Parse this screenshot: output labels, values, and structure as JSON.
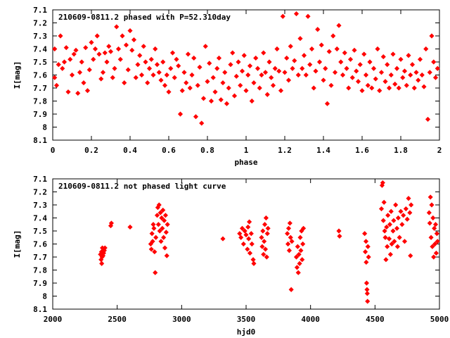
{
  "chart_data": [
    {
      "type": "scatter",
      "title": "210609-0811.2 phased with P=52.310day",
      "xlabel": "phase",
      "ylabel": "I[mag]",
      "xlim": [
        0,
        2
      ],
      "ylim": [
        8.1,
        7.1
      ],
      "y_inverted": true,
      "grid": false,
      "color": "#ff0000",
      "xticks": [
        "0",
        "0.2",
        "0.4",
        "0.6",
        "0.8",
        "1",
        "1.2",
        "1.4",
        "1.6",
        "1.8",
        "2"
      ],
      "yticks": [
        "7.1",
        "7.2",
        "7.3",
        "7.4",
        "7.5",
        "7.6",
        "7.7",
        "7.8",
        "7.9",
        "8",
        "8.1"
      ],
      "points": [
        [
          0.01,
          7.4
        ],
        [
          0.01,
          7.62
        ],
        [
          0.02,
          7.68
        ],
        [
          0.03,
          7.52
        ],
        [
          0.04,
          7.3
        ],
        [
          0.05,
          7.55
        ],
        [
          0.06,
          7.5
        ],
        [
          0.07,
          7.39
        ],
        [
          0.08,
          7.73
        ],
        [
          0.09,
          7.48
        ],
        [
          0.1,
          7.6
        ],
        [
          0.11,
          7.44
        ],
        [
          0.12,
          7.41
        ],
        [
          0.13,
          7.74
        ],
        [
          0.14,
          7.58
        ],
        [
          0.15,
          7.5
        ],
        [
          0.16,
          7.66
        ],
        [
          0.17,
          7.39
        ],
        [
          0.18,
          7.72
        ],
        [
          0.19,
          7.56
        ],
        [
          0.2,
          7.35
        ],
        [
          0.21,
          7.48
        ],
        [
          0.22,
          7.4
        ],
        [
          0.23,
          7.3
        ],
        [
          0.24,
          7.44
        ],
        [
          0.25,
          7.63
        ],
        [
          0.26,
          7.58
        ],
        [
          0.27,
          7.43
        ],
        [
          0.28,
          7.5
        ],
        [
          0.29,
          7.38
        ],
        [
          0.3,
          7.42
        ],
        [
          0.31,
          7.62
        ],
        [
          0.32,
          7.55
        ],
        [
          0.33,
          7.23
        ],
        [
          0.34,
          7.4
        ],
        [
          0.35,
          7.48
        ],
        [
          0.36,
          7.3
        ],
        [
          0.37,
          7.66
        ],
        [
          0.38,
          7.37
        ],
        [
          0.39,
          7.56
        ],
        [
          0.4,
          7.26
        ],
        [
          0.41,
          7.41
        ],
        [
          0.42,
          7.33
        ],
        [
          0.43,
          7.62
        ],
        [
          0.44,
          7.52
        ],
        [
          0.45,
          7.45
        ],
        [
          0.46,
          7.6
        ],
        [
          0.47,
          7.38
        ],
        [
          0.48,
          7.5
        ],
        [
          0.49,
          7.66
        ],
        [
          0.5,
          7.55
        ],
        [
          0.51,
          7.48
        ],
        [
          0.52,
          7.6
        ],
        [
          0.53,
          7.4
        ],
        [
          0.54,
          7.52
        ],
        [
          0.55,
          7.58
        ],
        [
          0.56,
          7.64
        ],
        [
          0.57,
          7.5
        ],
        [
          0.58,
          7.68
        ],
        [
          0.59,
          7.6
        ],
        [
          0.6,
          7.73
        ],
        [
          0.61,
          7.55
        ],
        [
          0.62,
          7.43
        ],
        [
          0.63,
          7.62
        ],
        [
          0.64,
          7.48
        ],
        [
          0.65,
          7.53
        ],
        [
          0.66,
          7.9
        ],
        [
          0.67,
          7.72
        ],
        [
          0.68,
          7.58
        ],
        [
          0.69,
          7.66
        ],
        [
          0.7,
          7.44
        ],
        [
          0.71,
          7.7
        ],
        [
          0.72,
          7.6
        ],
        [
          0.73,
          7.47
        ],
        [
          0.74,
          7.92
        ],
        [
          0.75,
          7.68
        ],
        [
          0.76,
          7.54
        ],
        [
          0.77,
          7.97
        ],
        [
          0.78,
          7.78
        ],
        [
          0.79,
          7.38
        ],
        [
          0.8,
          7.65
        ],
        [
          0.81,
          7.51
        ],
        [
          0.82,
          7.8
        ],
        [
          0.83,
          7.62
        ],
        [
          0.84,
          7.73
        ],
        [
          0.85,
          7.55
        ],
        [
          0.86,
          7.47
        ],
        [
          0.87,
          7.79
        ],
        [
          0.88,
          7.66
        ],
        [
          0.89,
          7.58
        ],
        [
          0.9,
          7.82
        ],
        [
          0.91,
          7.7
        ],
        [
          0.92,
          7.52
        ],
        [
          0.93,
          7.43
        ],
        [
          0.94,
          7.76
        ],
        [
          0.95,
          7.61
        ],
        [
          0.96,
          7.5
        ],
        [
          0.97,
          7.68
        ],
        [
          0.98,
          7.57
        ],
        [
          0.99,
          7.45
        ],
        [
          1.0,
          7.72
        ],
        [
          1.01,
          7.6
        ],
        [
          1.02,
          7.53
        ],
        [
          1.03,
          7.8
        ],
        [
          1.04,
          7.66
        ],
        [
          1.05,
          7.47
        ],
        [
          1.06,
          7.55
        ],
        [
          1.07,
          7.7
        ],
        [
          1.08,
          7.6
        ],
        [
          1.09,
          7.43
        ],
        [
          1.1,
          7.58
        ],
        [
          1.11,
          7.75
        ],
        [
          1.12,
          7.5
        ],
        [
          1.13,
          7.62
        ],
        [
          1.14,
          7.68
        ],
        [
          1.15,
          7.55
        ],
        [
          1.16,
          7.4
        ],
        [
          1.17,
          7.57
        ],
        [
          1.18,
          7.72
        ],
        [
          1.19,
          7.15
        ],
        [
          1.2,
          7.58
        ],
        [
          1.21,
          7.47
        ],
        [
          1.22,
          7.64
        ],
        [
          1.23,
          7.38
        ],
        [
          1.24,
          7.55
        ],
        [
          1.25,
          7.49
        ],
        [
          1.26,
          7.13
        ],
        [
          1.27,
          7.6
        ],
        [
          1.28,
          7.32
        ],
        [
          1.29,
          7.55
        ],
        [
          1.3,
          7.45
        ],
        [
          1.31,
          7.6
        ],
        [
          1.32,
          7.15
        ],
        [
          1.33,
          7.52
        ],
        [
          1.34,
          7.4
        ],
        [
          1.35,
          7.7
        ],
        [
          1.36,
          7.57
        ],
        [
          1.37,
          7.25
        ],
        [
          1.38,
          7.5
        ],
        [
          1.39,
          7.37
        ],
        [
          1.4,
          7.64
        ],
        [
          1.41,
          7.55
        ],
        [
          1.42,
          7.82
        ],
        [
          1.43,
          7.42
        ],
        [
          1.44,
          7.68
        ],
        [
          1.45,
          7.3
        ],
        [
          1.46,
          7.58
        ],
        [
          1.47,
          7.4
        ],
        [
          1.48,
          7.22
        ],
        [
          1.49,
          7.5
        ],
        [
          1.5,
          7.6
        ],
        [
          1.51,
          7.43
        ],
        [
          1.52,
          7.55
        ],
        [
          1.53,
          7.7
        ],
        [
          1.54,
          7.48
        ],
        [
          1.55,
          7.62
        ],
        [
          1.56,
          7.41
        ],
        [
          1.57,
          7.57
        ],
        [
          1.58,
          7.65
        ],
        [
          1.59,
          7.52
        ],
        [
          1.6,
          7.72
        ],
        [
          1.61,
          7.44
        ],
        [
          1.62,
          7.6
        ],
        [
          1.63,
          7.68
        ],
        [
          1.64,
          7.5
        ],
        [
          1.65,
          7.7
        ],
        [
          1.66,
          7.55
        ],
        [
          1.67,
          7.63
        ],
        [
          1.68,
          7.4
        ],
        [
          1.69,
          7.72
        ],
        [
          1.7,
          7.58
        ],
        [
          1.71,
          7.46
        ],
        [
          1.72,
          7.65
        ],
        [
          1.73,
          7.52
        ],
        [
          1.74,
          7.7
        ],
        [
          1.75,
          7.6
        ],
        [
          1.76,
          7.44
        ],
        [
          1.77,
          7.67
        ],
        [
          1.78,
          7.55
        ],
        [
          1.79,
          7.7
        ],
        [
          1.8,
          7.48
        ],
        [
          1.81,
          7.62
        ],
        [
          1.82,
          7.57
        ],
        [
          1.83,
          7.68
        ],
        [
          1.84,
          7.45
        ],
        [
          1.85,
          7.6
        ],
        [
          1.86,
          7.52
        ],
        [
          1.87,
          7.7
        ],
        [
          1.88,
          7.58
        ],
        [
          1.89,
          7.64
        ],
        [
          1.9,
          7.48
        ],
        [
          1.91,
          7.6
        ],
        [
          1.92,
          7.69
        ],
        [
          1.93,
          7.4
        ],
        [
          1.94,
          7.94
        ],
        [
          1.95,
          7.58
        ],
        [
          1.96,
          7.3
        ],
        [
          1.97,
          7.5
        ],
        [
          1.98,
          7.62
        ],
        [
          1.99,
          7.55
        ]
      ]
    },
    {
      "type": "scatter",
      "title": "210609-0811.2 not phased light curve",
      "xlabel": "hjd0",
      "ylabel": "I[mag]",
      "xlim": [
        2000,
        5000
      ],
      "ylim": [
        8.1,
        7.1
      ],
      "y_inverted": true,
      "grid": false,
      "color": "#ff0000",
      "xticks": [
        "2000",
        "2500",
        "3000",
        "3500",
        "4000",
        "4500",
        "5000"
      ],
      "yticks": [
        "7.1",
        "7.2",
        "7.3",
        "7.4",
        "7.5",
        "7.6",
        "7.7",
        "7.8",
        "7.9",
        "8",
        "8.1"
      ],
      "points": [
        [
          2370,
          7.68
        ],
        [
          2375,
          7.72
        ],
        [
          2378,
          7.66
        ],
        [
          2380,
          7.75
        ],
        [
          2383,
          7.7
        ],
        [
          2385,
          7.63
        ],
        [
          2390,
          7.69
        ],
        [
          2395,
          7.67
        ],
        [
          2400,
          7.65
        ],
        [
          2405,
          7.63
        ],
        [
          2450,
          7.46
        ],
        [
          2455,
          7.44
        ],
        [
          2600,
          7.47
        ],
        [
          2760,
          7.6
        ],
        [
          2765,
          7.64
        ],
        [
          2770,
          7.52
        ],
        [
          2775,
          7.58
        ],
        [
          2780,
          7.45
        ],
        [
          2785,
          7.48
        ],
        [
          2790,
          7.66
        ],
        [
          2795,
          7.82
        ],
        [
          2800,
          7.55
        ],
        [
          2810,
          7.38
        ],
        [
          2815,
          7.32
        ],
        [
          2820,
          7.45
        ],
        [
          2825,
          7.3
        ],
        [
          2830,
          7.5
        ],
        [
          2835,
          7.36
        ],
        [
          2840,
          7.58
        ],
        [
          2845,
          7.4
        ],
        [
          2850,
          7.48
        ],
        [
          2855,
          7.34
        ],
        [
          2860,
          7.55
        ],
        [
          2865,
          7.42
        ],
        [
          2870,
          7.63
        ],
        [
          2875,
          7.38
        ],
        [
          2880,
          7.51
        ],
        [
          2885,
          7.69
        ],
        [
          2890,
          7.45
        ],
        [
          3320,
          7.56
        ],
        [
          3450,
          7.52
        ],
        [
          3460,
          7.55
        ],
        [
          3470,
          7.48
        ],
        [
          3480,
          7.6
        ],
        [
          3490,
          7.5
        ],
        [
          3500,
          7.53
        ],
        [
          3510,
          7.64
        ],
        [
          3515,
          7.47
        ],
        [
          3520,
          7.56
        ],
        [
          3525,
          7.43
        ],
        [
          3530,
          7.67
        ],
        [
          3540,
          7.52
        ],
        [
          3545,
          7.6
        ],
        [
          3555,
          7.72
        ],
        [
          3560,
          7.75
        ],
        [
          3620,
          7.55
        ],
        [
          3625,
          7.62
        ],
        [
          3630,
          7.5
        ],
        [
          3635,
          7.68
        ],
        [
          3640,
          7.58
        ],
        [
          3645,
          7.45
        ],
        [
          3650,
          7.64
        ],
        [
          3655,
          7.4
        ],
        [
          3660,
          7.7
        ],
        [
          3665,
          7.52
        ],
        [
          3670,
          7.48
        ],
        [
          3820,
          7.52
        ],
        [
          3825,
          7.6
        ],
        [
          3830,
          7.48
        ],
        [
          3835,
          7.65
        ],
        [
          3840,
          7.44
        ],
        [
          3845,
          7.55
        ],
        [
          3850,
          7.95
        ],
        [
          3855,
          7.58
        ],
        [
          3890,
          7.7
        ],
        [
          3895,
          7.78
        ],
        [
          3900,
          7.62
        ],
        [
          3905,
          7.82
        ],
        [
          3910,
          7.68
        ],
        [
          3915,
          7.75
        ],
        [
          3920,
          7.55
        ],
        [
          3925,
          7.65
        ],
        [
          3930,
          7.5
        ],
        [
          3935,
          7.72
        ],
        [
          3940,
          7.6
        ],
        [
          3945,
          7.48
        ],
        [
          4220,
          7.5
        ],
        [
          4225,
          7.54
        ],
        [
          4420,
          7.52
        ],
        [
          4425,
          7.66
        ],
        [
          4430,
          7.58
        ],
        [
          4432,
          7.74
        ],
        [
          4435,
          7.9
        ],
        [
          4438,
          7.95
        ],
        [
          4440,
          7.98
        ],
        [
          4442,
          8.04
        ],
        [
          4445,
          7.62
        ],
        [
          4450,
          7.7
        ],
        [
          4550,
          7.33
        ],
        [
          4555,
          7.15
        ],
        [
          4560,
          7.13
        ],
        [
          4565,
          7.42
        ],
        [
          4570,
          7.28
        ],
        [
          4575,
          7.5
        ],
        [
          4580,
          7.55
        ],
        [
          4585,
          7.72
        ],
        [
          4590,
          7.47
        ],
        [
          4595,
          7.62
        ],
        [
          4600,
          7.38
        ],
        [
          4610,
          7.56
        ],
        [
          4615,
          7.45
        ],
        [
          4620,
          7.68
        ],
        [
          4625,
          7.35
        ],
        [
          4630,
          7.6
        ],
        [
          4640,
          7.5
        ],
        [
          4645,
          7.42
        ],
        [
          4650,
          7.58
        ],
        [
          4660,
          7.3
        ],
        [
          4670,
          7.48
        ],
        [
          4675,
          7.62
        ],
        [
          4680,
          7.4
        ],
        [
          4690,
          7.55
        ],
        [
          4700,
          7.35
        ],
        [
          4710,
          7.45
        ],
        [
          4720,
          7.38
        ],
        [
          4730,
          7.58
        ],
        [
          4740,
          7.33
        ],
        [
          4750,
          7.41
        ],
        [
          4760,
          7.25
        ],
        [
          4770,
          7.36
        ],
        [
          4775,
          7.69
        ],
        [
          4780,
          7.3
        ],
        [
          4920,
          7.36
        ],
        [
          4925,
          7.44
        ],
        [
          4930,
          7.24
        ],
        [
          4935,
          7.55
        ],
        [
          4940,
          7.3
        ],
        [
          4945,
          7.62
        ],
        [
          4950,
          7.4
        ],
        [
          4955,
          7.7
        ],
        [
          4960,
          7.48
        ],
        [
          4965,
          7.6
        ],
        [
          4970,
          7.45
        ],
        [
          4975,
          7.67
        ],
        [
          4980,
          7.52
        ],
        [
          4985,
          7.58
        ]
      ]
    }
  ]
}
